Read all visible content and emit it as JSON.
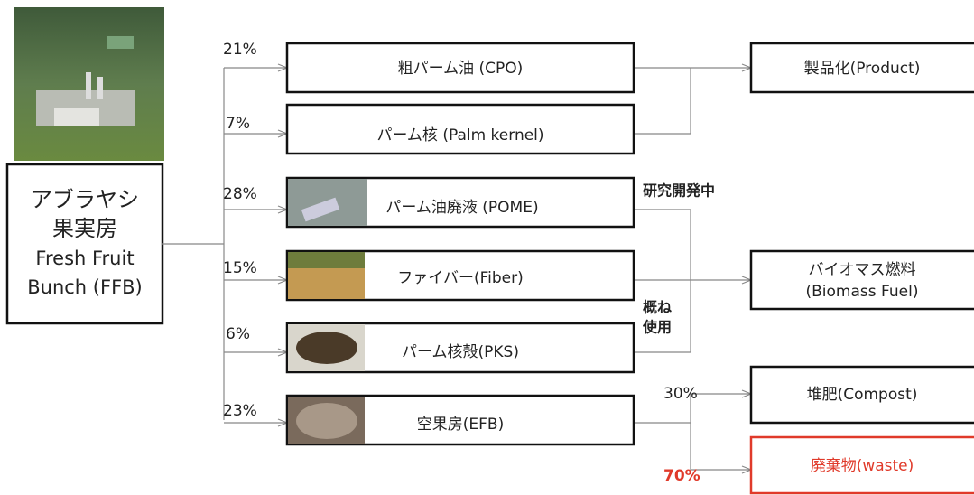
{
  "source": {
    "lines": [
      "アブラヤシ",
      "果実房",
      "Fresh Fruit",
      "Bunch (FFB)"
    ]
  },
  "products": [
    {
      "percent": "21%",
      "label": "粗パーム油 (CPO)"
    },
    {
      "percent": "7%",
      "label": "パーム核 (Palm kernel)"
    },
    {
      "percent": "28%",
      "label": "パーム油廃液 (POME)"
    },
    {
      "percent": "15%",
      "label": "ファイバー(Fiber)"
    },
    {
      "percent": "6%",
      "label": "パーム核殻(PKS)"
    },
    {
      "percent": "23%",
      "label": "空果房(EFB)"
    }
  ],
  "destinations": [
    {
      "lines": [
        "製品化(Product)"
      ]
    },
    {
      "lines": [
        "バイオマス燃料",
        "(Biomass Fuel)"
      ]
    },
    {
      "lines": [
        "堆肥(Compost)"
      ]
    },
    {
      "lines": [
        "廃棄物(waste)"
      ]
    }
  ],
  "notes": {
    "research": "研究開発中",
    "mostly_used": [
      "概ね",
      "使用"
    ],
    "compost_percent": "30%",
    "waste_percent": "70%"
  }
}
